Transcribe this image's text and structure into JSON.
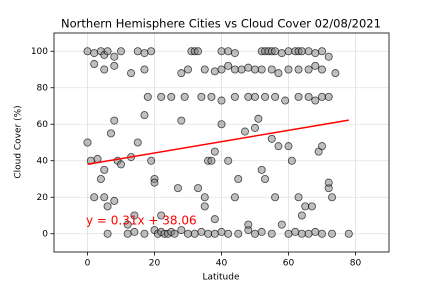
{
  "chart_data": {
    "type": "scatter",
    "title": "Northern Hemisphere Cities vs Cloud Cover 02/08/2021",
    "x_label": "Latitude",
    "y_label": "Cloud Cover (%)",
    "annotation": "y = 0.31x + 38.06",
    "annotation_color": "#ff0000",
    "xlim": [
      -10,
      90
    ],
    "xticks": [
      0,
      20,
      40,
      60,
      80
    ],
    "ylim": [
      -10,
      110
    ],
    "yticks": [
      0,
      20,
      40,
      60,
      80,
      100
    ],
    "grid": true,
    "series": [
      {
        "color": "#808080",
        "x": [
          0,
          2,
          4,
          5,
          6,
          8,
          10,
          15,
          17,
          19,
          31,
          32,
          33,
          40,
          42,
          44,
          52,
          53,
          54,
          55,
          56,
          58,
          60,
          62,
          63,
          64,
          66,
          68,
          70,
          72,
          2,
          5,
          8,
          13,
          17,
          28,
          30,
          35,
          38,
          40,
          42,
          44,
          46,
          48,
          50,
          52,
          55,
          57,
          60,
          63,
          66,
          68,
          70,
          74,
          18,
          22,
          25,
          29,
          34,
          37,
          40,
          44,
          48,
          50,
          53,
          56,
          59,
          63,
          66,
          68,
          70,
          72,
          6,
          12,
          14,
          17,
          20,
          21,
          22,
          23,
          24,
          25,
          26,
          28,
          30,
          32,
          34,
          36,
          38,
          40,
          42,
          45,
          48,
          50,
          52,
          55,
          60,
          62,
          64,
          66,
          68,
          70,
          73,
          78,
          0,
          1,
          3,
          4,
          5,
          7,
          8,
          9,
          10,
          13,
          15,
          17,
          19,
          20,
          20,
          27,
          28,
          33,
          35,
          36,
          37,
          38,
          40,
          42,
          45,
          47,
          50,
          51,
          52,
          53,
          55,
          56,
          57,
          60,
          61,
          63,
          64,
          65,
          67,
          69,
          70,
          72,
          72,
          73,
          2,
          5,
          6,
          8,
          12,
          14,
          22,
          35,
          38,
          44,
          48,
          58
        ],
        "values": [
          100,
          99,
          100,
          98,
          100,
          97,
          100,
          100,
          99,
          100,
          100,
          100,
          100,
          100,
          100,
          99,
          100,
          100,
          100,
          100,
          100,
          99,
          100,
          100,
          100,
          100,
          100,
          99,
          100,
          97,
          93,
          90,
          92,
          88,
          90,
          88,
          90,
          90,
          89,
          90,
          92,
          90,
          90,
          91,
          90,
          90,
          90,
          88,
          90,
          90,
          90,
          92,
          90,
          88,
          75,
          75,
          75,
          75,
          75,
          75,
          73,
          75,
          75,
          75,
          75,
          75,
          73,
          75,
          75,
          73,
          75,
          75,
          0,
          0,
          1,
          0,
          2,
          0,
          1,
          0,
          0,
          1,
          0,
          2,
          0,
          0,
          1,
          0,
          0,
          1,
          0,
          0,
          2,
          0,
          1,
          0,
          0,
          1,
          0,
          0,
          1,
          0,
          0,
          0,
          50,
          40,
          41,
          30,
          35,
          55,
          62,
          40,
          38,
          42,
          50,
          65,
          40,
          30,
          28,
          25,
          62,
          25,
          20,
          40,
          40,
          45,
          60,
          40,
          30,
          56,
          58,
          63,
          35,
          30,
          52,
          20,
          48,
          48,
          40,
          20,
          10,
          15,
          15,
          45,
          48,
          25,
          28,
          20,
          20,
          20,
          15,
          18,
          5,
          10,
          10,
          15,
          8,
          20,
          5,
          5
        ]
      }
    ],
    "line": {
      "color": "#ff0000",
      "x": [
        0,
        78
      ],
      "values": [
        38.06,
        62.24
      ]
    }
  }
}
